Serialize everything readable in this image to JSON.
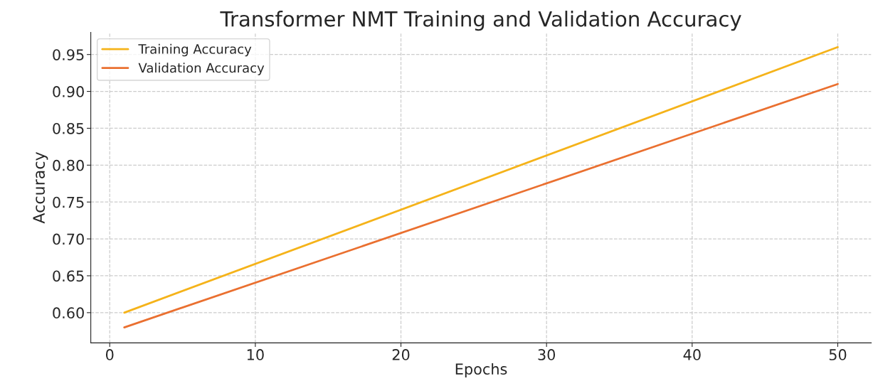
{
  "chart_data": {
    "type": "line",
    "title": "Transformer NMT Training and Validation Accuracy",
    "xlabel": "Epochs",
    "ylabel": "Accuracy",
    "x": [
      1,
      50
    ],
    "series": [
      {
        "name": "Training Accuracy",
        "color": "#f5b31a",
        "values": [
          0.6,
          0.96
        ]
      },
      {
        "name": "Validation Accuracy",
        "color": "#ea7030",
        "values": [
          0.58,
          0.91
        ]
      }
    ],
    "xlim": [
      -1.3,
      52.3
    ],
    "xticks": [
      0,
      10,
      20,
      30,
      40,
      50
    ],
    "ylim": [
      0.559,
      0.98
    ],
    "yticks": [
      {
        "value": 0.6,
        "label": "0.60"
      },
      0.65,
      {
        "value": 0.7,
        "label": "0.70"
      },
      0.75,
      {
        "value": 0.8,
        "label": "0.80"
      },
      0.85,
      {
        "value": 0.9,
        "label": "0.90"
      },
      0.95
    ],
    "grid": true,
    "legend": "top left",
    "line_style": "solid",
    "marker": "none"
  }
}
